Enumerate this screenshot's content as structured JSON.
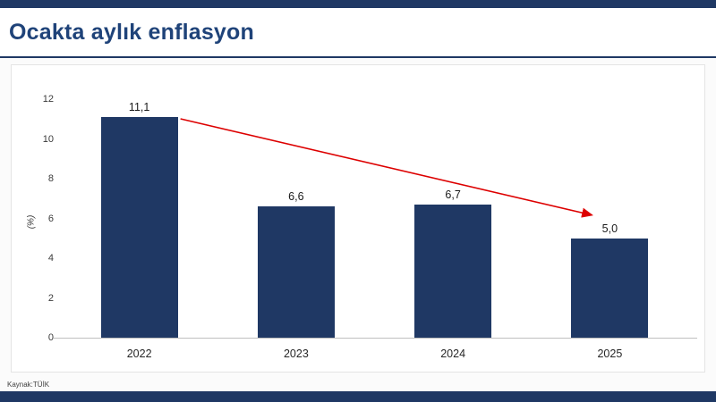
{
  "header": {
    "title": "Ocakta aylık enflasyon"
  },
  "footer": {
    "source": "Kaynak:TÜİK"
  },
  "colors": {
    "accent_navy": "#1F3864",
    "bar": "#1F3864",
    "title": "#1F4379",
    "arrow": "#DD0000"
  },
  "chart_data": {
    "type": "bar",
    "title": "Ocakta aylık enflasyon",
    "categories": [
      "2022",
      "2023",
      "2024",
      "2025"
    ],
    "values": [
      11.1,
      6.6,
      6.7,
      5.0
    ],
    "value_labels": [
      "11,1",
      "6,6",
      "6,7",
      "5,0"
    ],
    "xlabel": "",
    "ylabel": "(%)",
    "ylim": [
      0,
      12
    ],
    "yticks": [
      0,
      2,
      4,
      6,
      8,
      10,
      12
    ],
    "grid": false,
    "legend": false,
    "annotations": [
      {
        "type": "arrow",
        "meaning": "downward trend from 2022 peak to 2025",
        "from_category": "2022",
        "to_category": "2025",
        "color": "#DD0000"
      }
    ]
  }
}
